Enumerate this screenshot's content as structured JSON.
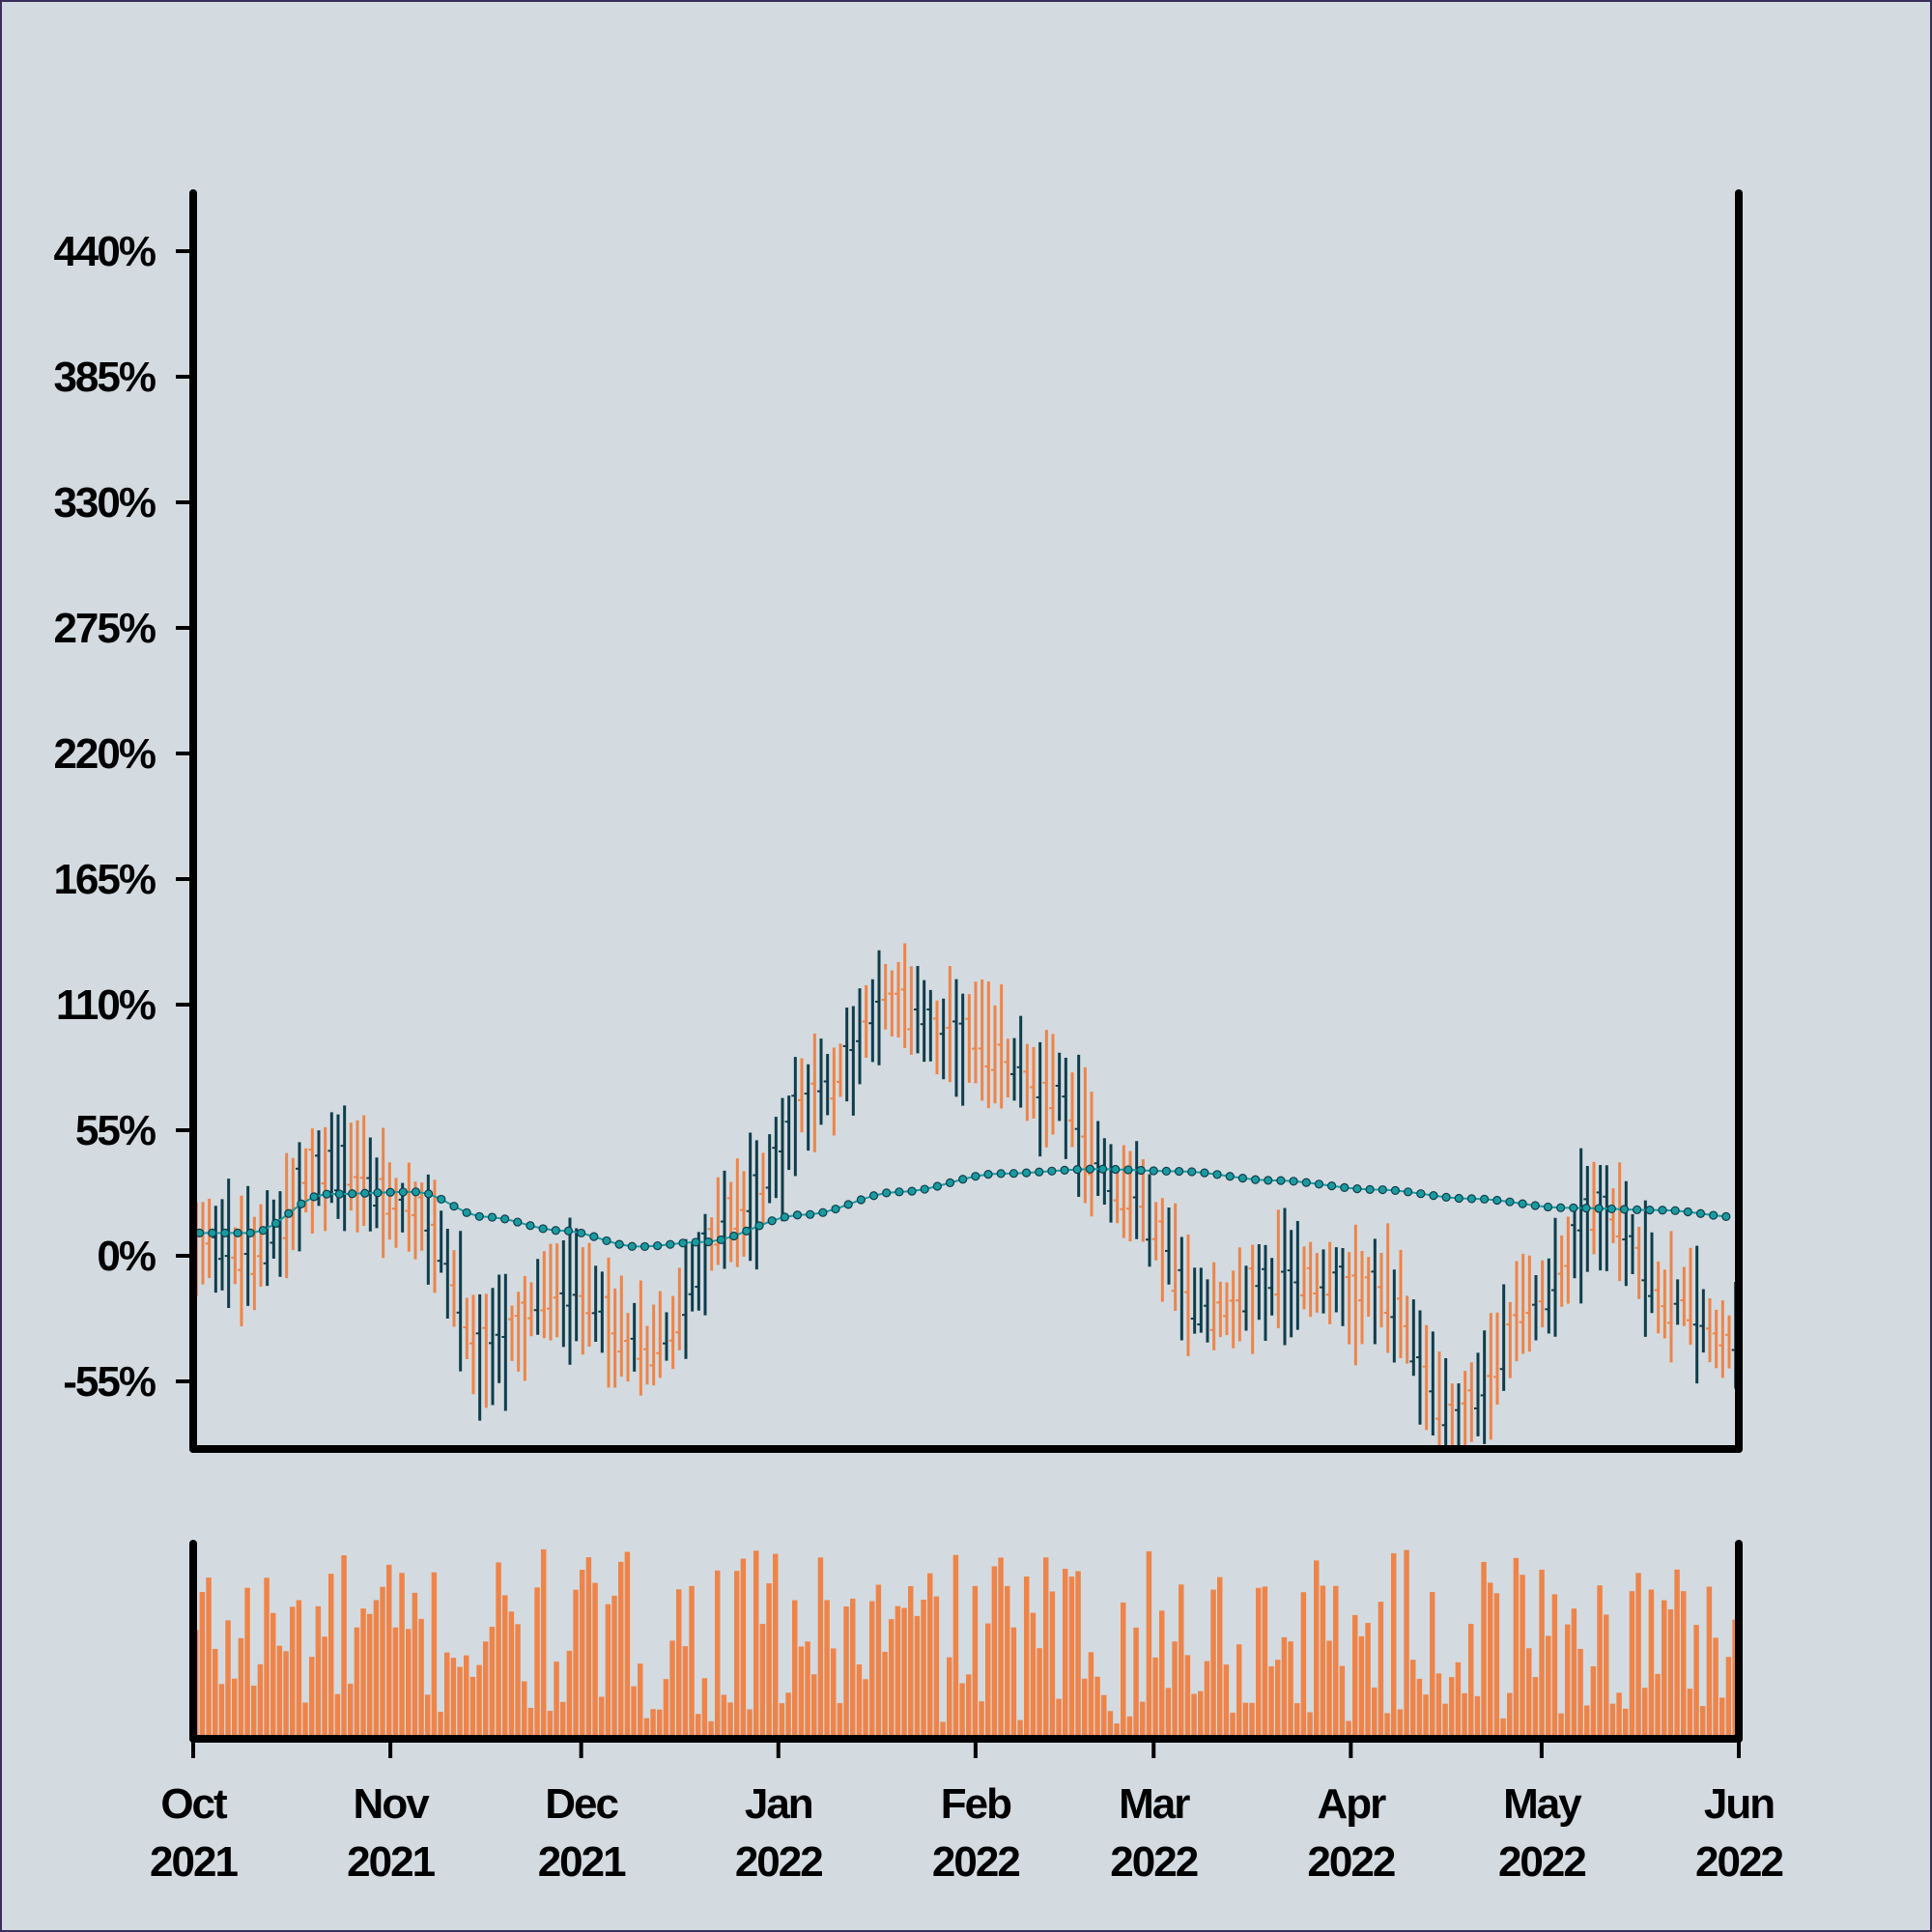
{
  "chart_data": [
    {
      "type": "ohlc",
      "title": "",
      "xlabel": "",
      "ylabel": "",
      "x_range": [
        "2021-10-01",
        "2022-06-01"
      ],
      "ylim": [
        -75,
        475
      ],
      "y_ticks": [
        "-55%",
        "0%",
        "55%",
        "110%",
        "165%",
        "220%",
        "275%",
        "330%",
        "385%",
        "440%"
      ],
      "y_tick_values": [
        -55,
        0,
        55,
        110,
        165,
        220,
        275,
        330,
        385,
        440
      ],
      "grid": false,
      "up_color": "#ee8449",
      "down_color": "#0f3d4c",
      "bar_count": 240,
      "price_keypoints": {
        "dates": [
          "2021-10-01",
          "2021-10-10",
          "2021-10-22",
          "2021-11-05",
          "2021-11-16",
          "2021-11-28",
          "2021-12-12",
          "2021-12-26",
          "2022-01-08",
          "2022-01-18",
          "2022-01-30",
          "2022-02-12",
          "2022-02-25",
          "2022-03-10",
          "2022-03-22",
          "2022-04-05",
          "2022-04-18",
          "2022-04-30",
          "2022-05-10",
          "2022-05-22",
          "2022-06-01"
        ],
        "values": [
          5,
          0,
          40,
          20,
          -40,
          -15,
          -40,
          20,
          75,
          110,
          95,
          75,
          25,
          -25,
          -10,
          -15,
          -70,
          -20,
          20,
          -20,
          -40
        ]
      },
      "series": [
        {
          "name": "",
          "type": "line-markers",
          "color": "#1a9ba0",
          "dates": [
            "2021-10-01",
            "2021-10-10",
            "2021-10-22",
            "2021-11-05",
            "2021-11-16",
            "2021-11-28",
            "2021-12-10",
            "2021-12-20",
            "2022-01-05",
            "2022-01-20",
            "2022-02-05",
            "2022-02-20",
            "2022-03-05",
            "2022-03-20",
            "2022-04-05",
            "2022-04-20",
            "2022-05-05",
            "2022-05-20",
            "2022-06-01"
          ],
          "values": [
            10,
            10,
            27,
            28,
            17,
            11,
            4,
            6,
            18,
            28,
            36,
            38,
            37,
            33,
            29,
            25,
            21,
            20,
            17
          ]
        }
      ]
    },
    {
      "type": "bar",
      "title": "",
      "ylabel": "",
      "ylim": [
        0,
        105
      ],
      "grid": false,
      "color": "#ee8449",
      "x_range": [
        "2021-10-01",
        "2022-06-01"
      ],
      "x_ticks": [
        {
          "month": "Oct",
          "year": "2021",
          "date": "2021-10-01"
        },
        {
          "month": "Nov",
          "year": "2021",
          "date": "2021-11-01"
        },
        {
          "month": "Dec",
          "year": "2021",
          "date": "2021-12-01"
        },
        {
          "month": "Jan",
          "year": "2022",
          "date": "2022-01-01"
        },
        {
          "month": "Feb",
          "year": "2022",
          "date": "2022-02-01"
        },
        {
          "month": "Mar",
          "year": "2022",
          "date": "2022-03-01"
        },
        {
          "month": "Apr",
          "year": "2022",
          "date": "2022-04-01"
        },
        {
          "month": "May",
          "year": "2022",
          "date": "2022-05-01"
        },
        {
          "month": "Jun",
          "year": "2022",
          "date": "2022-06-01"
        }
      ],
      "bar_count": 240,
      "value_range": [
        8,
        102
      ]
    }
  ]
}
